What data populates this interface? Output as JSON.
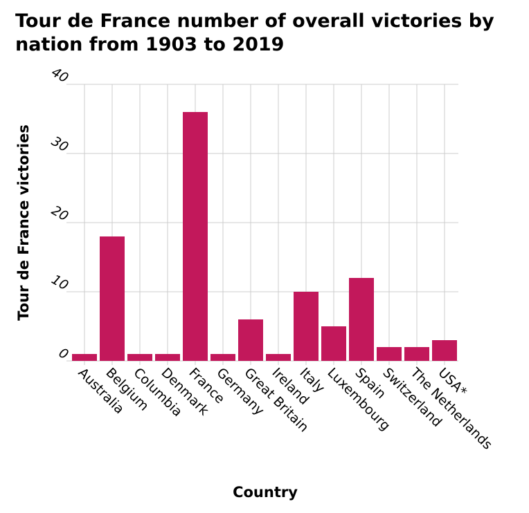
{
  "chart_data": {
    "type": "bar",
    "title": "Tour de France number of overall victories by nation from 1903 to 2019",
    "xlabel": "Country",
    "ylabel": "Tour de France victories",
    "categories": [
      "Australia",
      "Belgium",
      "Columbia",
      "Denmark",
      "France",
      "Germany",
      "Great Britain",
      "Ireland",
      "Italy",
      "Luxembourg",
      "Spain",
      "Switzerland",
      "The Netherlands",
      "USA*"
    ],
    "values": [
      1,
      18,
      1,
      1,
      36,
      1,
      6,
      1,
      10,
      5,
      12,
      2,
      2,
      3
    ],
    "ylim": [
      0,
      40
    ],
    "yticks": [
      0,
      10,
      20,
      30,
      40
    ],
    "grid": true,
    "bar_color": "#c2185b"
  }
}
